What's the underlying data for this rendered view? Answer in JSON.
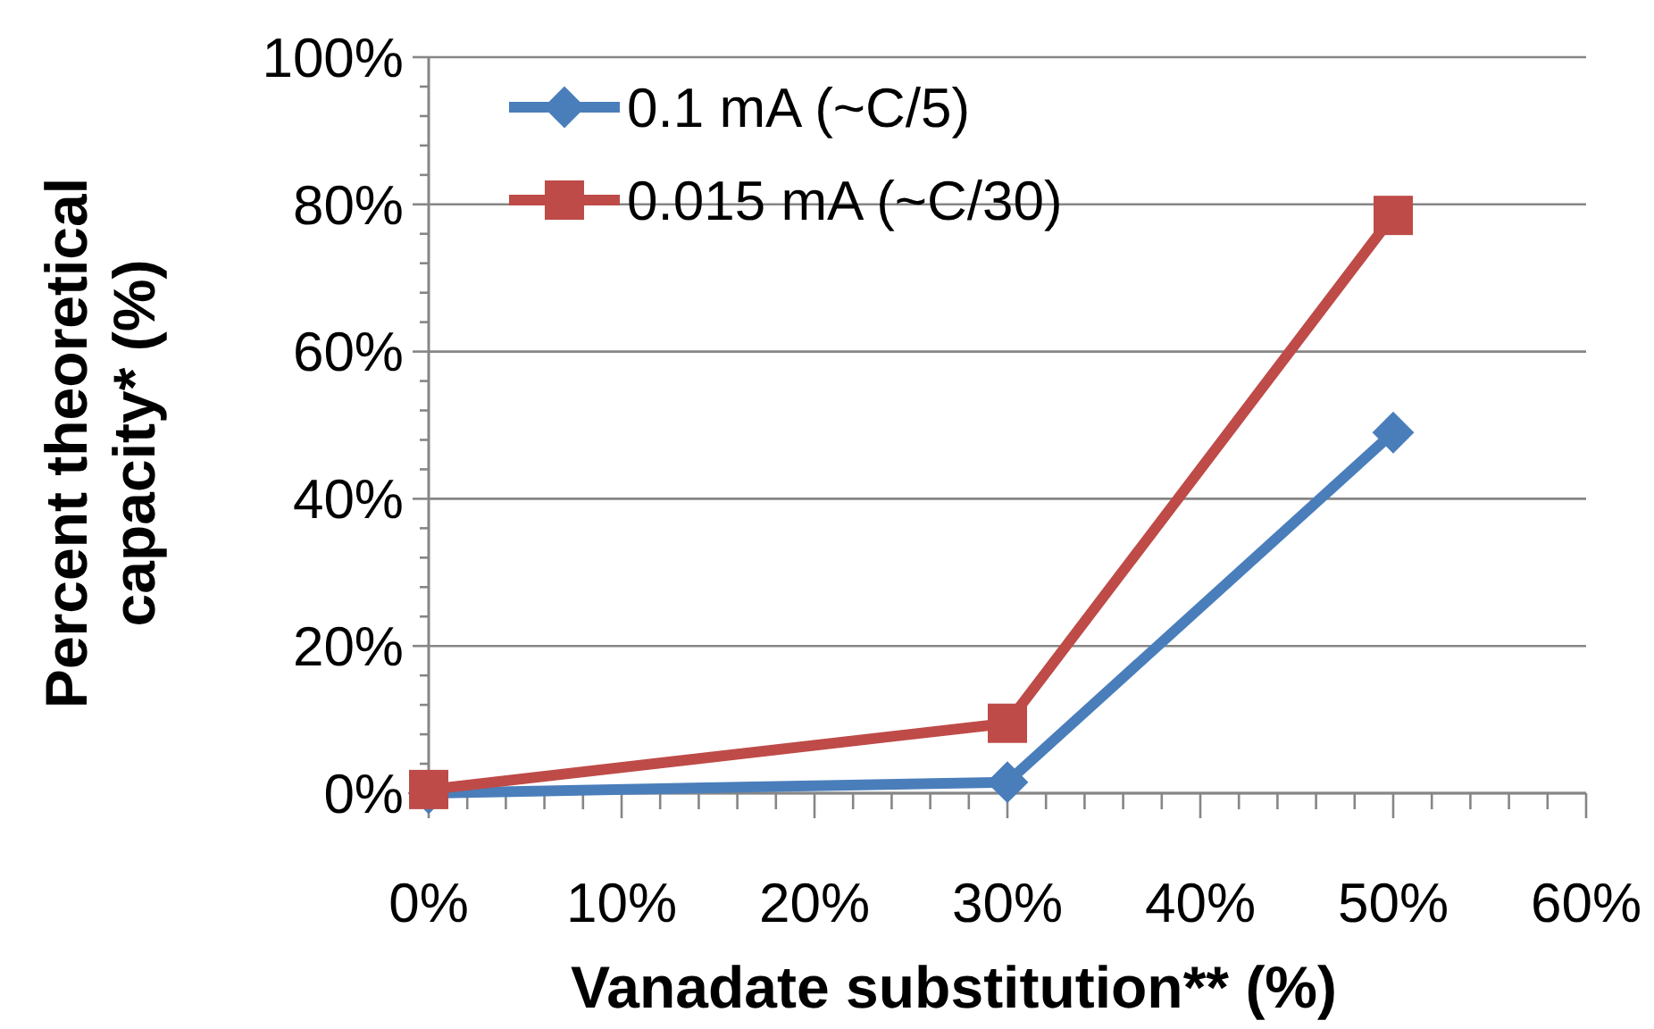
{
  "chart_data": {
    "type": "line",
    "xlabel": "Vanadate substitution** (%)",
    "ylabel": "Percent theoretical capacity* (%)",
    "x": [
      0,
      30,
      50
    ],
    "series": [
      {
        "name": "0.1 mA (~C/5)",
        "color": "#4a7ebb",
        "values": [
          0,
          1.5,
          49
        ],
        "marker": "diamond"
      },
      {
        "name": "0.015 mA (~C/30)",
        "color": "#be4b48",
        "values": [
          0.5,
          9.5,
          78.5
        ],
        "marker": "square"
      }
    ],
    "xlim": [
      0,
      60
    ],
    "xticks": [
      {
        "value": 0,
        "label": "0%"
      },
      {
        "value": 2,
        "label": null
      },
      {
        "value": 4,
        "label": null
      },
      {
        "value": 6,
        "label": null
      },
      {
        "value": 8,
        "label": null
      },
      {
        "value": 10,
        "label": "10%"
      },
      {
        "value": 12,
        "label": null
      },
      {
        "value": 14,
        "label": null
      },
      {
        "value": 16,
        "label": null
      },
      {
        "value": 18,
        "label": null
      },
      {
        "value": 20,
        "label": "20%"
      },
      {
        "value": 22,
        "label": null
      },
      {
        "value": 24,
        "label": null
      },
      {
        "value": 26,
        "label": null
      },
      {
        "value": 28,
        "label": null
      },
      {
        "value": 30,
        "label": "30%"
      },
      {
        "value": 32,
        "label": null
      },
      {
        "value": 34,
        "label": null
      },
      {
        "value": 36,
        "label": null
      },
      {
        "value": 38,
        "label": null
      },
      {
        "value": 40,
        "label": "40%"
      },
      {
        "value": 42,
        "label": null
      },
      {
        "value": 44,
        "label": null
      },
      {
        "value": 46,
        "label": null
      },
      {
        "value": 48,
        "label": null
      },
      {
        "value": 50,
        "label": "50%"
      },
      {
        "value": 52,
        "label": null
      },
      {
        "value": 54,
        "label": null
      },
      {
        "value": 56,
        "label": null
      },
      {
        "value": 58,
        "label": null
      },
      {
        "value": 60,
        "label": "60%"
      }
    ],
    "ylim": [
      0,
      100
    ],
    "yticks": [
      {
        "value": 0,
        "label": "0%"
      },
      {
        "value": 4,
        "label": null
      },
      {
        "value": 8,
        "label": null
      },
      {
        "value": 12,
        "label": null
      },
      {
        "value": 16,
        "label": null
      },
      {
        "value": 20,
        "label": "20%"
      },
      {
        "value": 24,
        "label": null
      },
      {
        "value": 28,
        "label": null
      },
      {
        "value": 32,
        "label": null
      },
      {
        "value": 36,
        "label": null
      },
      {
        "value": 40,
        "label": "40%"
      },
      {
        "value": 44,
        "label": null
      },
      {
        "value": 48,
        "label": null
      },
      {
        "value": 52,
        "label": null
      },
      {
        "value": 56,
        "label": null
      },
      {
        "value": 60,
        "label": "60%"
      },
      {
        "value": 64,
        "label": null
      },
      {
        "value": 68,
        "label": null
      },
      {
        "value": 72,
        "label": null
      },
      {
        "value": 76,
        "label": null
      },
      {
        "value": 80,
        "label": "80%"
      },
      {
        "value": 84,
        "label": null
      },
      {
        "value": 88,
        "label": null
      },
      {
        "value": 92,
        "label": null
      },
      {
        "value": 96,
        "label": null
      },
      {
        "value": 100,
        "label": "100%"
      }
    ],
    "grid": "y",
    "legend": "top left",
    "line_style": "solid"
  }
}
